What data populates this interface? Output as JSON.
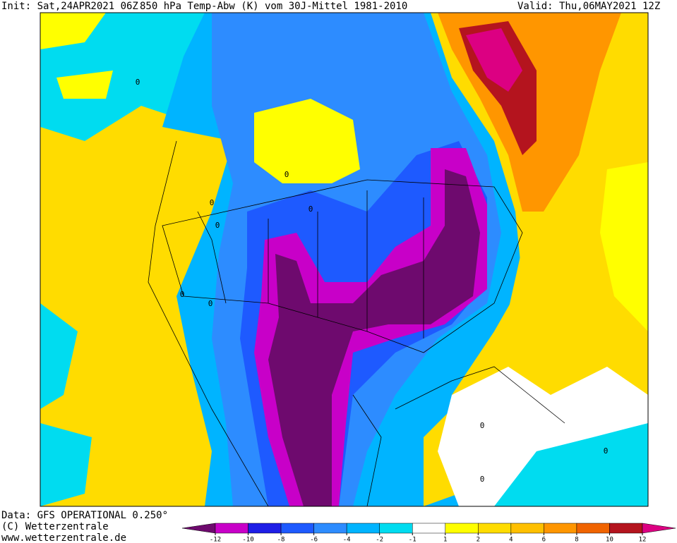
{
  "header": {
    "init": "Init: Sat,24APR2021 06Z",
    "title": "850 hPa Temp-Abw (K) vom 30J-Mittel 1981-2010",
    "valid": "Valid: Thu,06MAY2021 12Z"
  },
  "footer": {
    "data": "Data: GFS OPERATIONAL 0.250°",
    "copyright": "(C) Wetterzentrale",
    "url": "www.wetterzentrale.de"
  },
  "contour_labels": [
    "0",
    "0",
    "0",
    "0",
    "0",
    "0",
    "0",
    "0",
    "0",
    "0"
  ],
  "colorbar": {
    "ticks": [
      -12,
      -10,
      -8,
      -6,
      -4,
      -2,
      -1,
      1,
      2,
      4,
      6,
      8,
      10,
      12
    ],
    "colors": [
      "#6e0a6e",
      "#c800c8",
      "#1e1ee6",
      "#1e5aff",
      "#2d8cff",
      "#00b4ff",
      "#00dcf0",
      "#ffffff",
      "#ffff00",
      "#ffdc00",
      "#ffc000",
      "#ff9600",
      "#f06400",
      "#b4141e",
      "#dc0082"
    ]
  }
}
